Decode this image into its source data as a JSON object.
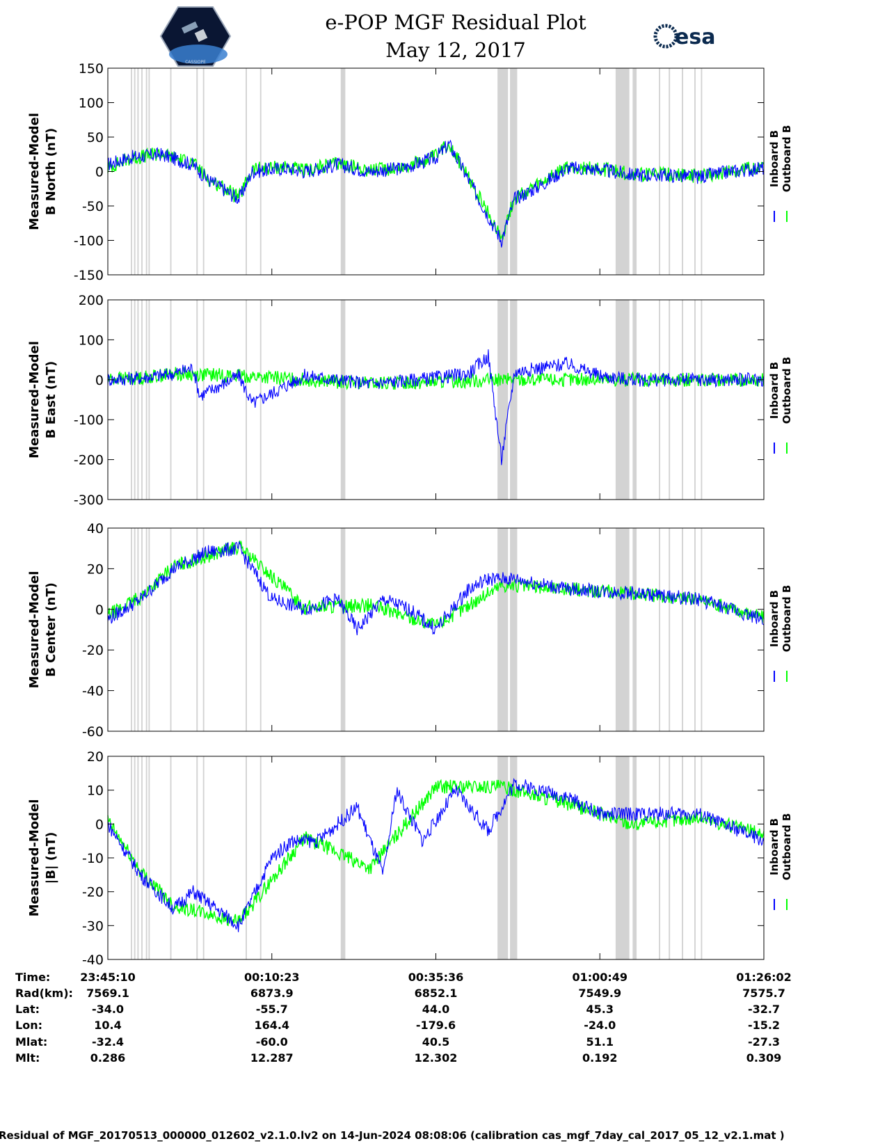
{
  "title_line1": "e-POP MGF Residual Plot",
  "title_line2": "May 12, 2017",
  "logo_left": "CASSIOPE",
  "logo_right": "esa",
  "colors": {
    "inboard": "#0000ff",
    "outboard": "#00ff00",
    "gap": "#d3d3d3"
  },
  "chart_data": [
    {
      "type": "line",
      "ylabel": [
        "Measured-Model",
        "B North (nT)"
      ],
      "ylim": [
        -150,
        150
      ],
      "yticks": [
        -150,
        -100,
        -50,
        0,
        50,
        100,
        150
      ],
      "legend": [
        "Inboard B",
        "Outboard B"
      ],
      "series": [
        {
          "name": "Inboard B",
          "x": [
            0,
            0.03,
            0.08,
            0.13,
            0.15,
            0.2,
            0.22,
            0.27,
            0.3,
            0.35,
            0.4,
            0.45,
            0.5,
            0.52,
            0.56,
            0.6,
            0.62,
            0.66,
            0.7,
            0.75,
            0.8,
            0.85,
            0.9,
            0.95,
            1
          ],
          "y": [
            10,
            20,
            25,
            10,
            -10,
            -40,
            0,
            5,
            0,
            10,
            0,
            5,
            20,
            40,
            -30,
            -100,
            -40,
            -20,
            5,
            3,
            -5,
            -5,
            -8,
            0,
            5
          ]
        },
        {
          "name": "Outboard B",
          "x": [
            0,
            0.03,
            0.08,
            0.13,
            0.15,
            0.2,
            0.22,
            0.27,
            0.3,
            0.35,
            0.4,
            0.45,
            0.5,
            0.52,
            0.56,
            0.6,
            0.62,
            0.66,
            0.7,
            0.75,
            0.8,
            0.85,
            0.9,
            0.95,
            1
          ],
          "y": [
            5,
            18,
            26,
            12,
            -8,
            -38,
            3,
            7,
            1,
            12,
            2,
            6,
            22,
            42,
            -28,
            -95,
            -38,
            -18,
            6,
            4,
            -4,
            -4,
            -7,
            1,
            6
          ]
        }
      ]
    },
    {
      "type": "line",
      "ylabel": [
        "Measured-Model",
        "B East (nT)"
      ],
      "ylim": [
        -300,
        200
      ],
      "yticks": [
        -300,
        -200,
        -100,
        0,
        100,
        200
      ],
      "legend": [
        "Inboard B",
        "Outboard B"
      ],
      "series": [
        {
          "name": "Inboard B",
          "x": [
            0,
            0.05,
            0.1,
            0.13,
            0.14,
            0.2,
            0.22,
            0.3,
            0.4,
            0.5,
            0.55,
            0.58,
            0.6,
            0.62,
            0.7,
            0.75,
            0.8,
            0.9,
            1
          ],
          "y": [
            0,
            5,
            15,
            30,
            -40,
            10,
            -60,
            10,
            -10,
            5,
            15,
            60,
            -200,
            20,
            40,
            10,
            0,
            0,
            0
          ]
        },
        {
          "name": "Outboard B",
          "x": [
            0,
            0.02,
            0.05,
            0.1,
            0.2,
            0.4,
            0.6,
            0.8,
            1
          ],
          "y": [
            2,
            3,
            5,
            15,
            10,
            -10,
            0,
            0,
            0
          ]
        }
      ]
    },
    {
      "type": "line",
      "ylabel": [
        "Measured-Model",
        "B Center (nT)"
      ],
      "ylim": [
        -60,
        40
      ],
      "yticks": [
        -60,
        -40,
        -20,
        0,
        20,
        40
      ],
      "legend": [
        "Inboard B",
        "Outboard B"
      ],
      "series": [
        {
          "name": "Inboard B",
          "x": [
            0,
            0.05,
            0.1,
            0.15,
            0.2,
            0.25,
            0.3,
            0.35,
            0.38,
            0.42,
            0.46,
            0.5,
            0.55,
            0.58,
            0.62,
            0.7,
            0.8,
            0.9,
            0.95,
            1
          ],
          "y": [
            -5,
            5,
            20,
            28,
            30,
            5,
            0,
            5,
            -10,
            5,
            0,
            -10,
            10,
            15,
            15,
            10,
            8,
            5,
            0,
            -5
          ]
        },
        {
          "name": "Outboard B",
          "x": [
            0,
            0.05,
            0.1,
            0.2,
            0.3,
            0.4,
            0.5,
            0.6,
            0.7,
            0.8,
            0.9,
            1
          ],
          "y": [
            -3,
            6,
            21,
            31,
            1,
            2,
            -8,
            12,
            10,
            8,
            5,
            -4
          ]
        }
      ]
    },
    {
      "type": "line",
      "ylabel": [
        "Measured-Model",
        "|B| (nT)"
      ],
      "ylim": [
        -40,
        20
      ],
      "yticks": [
        -40,
        -30,
        -20,
        -10,
        0,
        10,
        20
      ],
      "legend": [
        "Inboard B",
        "Outboard B"
      ],
      "series": [
        {
          "name": "Inboard B",
          "x": [
            0,
            0.05,
            0.1,
            0.13,
            0.2,
            0.25,
            0.28,
            0.32,
            0.38,
            0.42,
            0.44,
            0.48,
            0.53,
            0.58,
            0.62,
            0.7,
            0.75,
            0.8,
            0.9,
            1
          ],
          "y": [
            0,
            -15,
            -25,
            -20,
            -30,
            -10,
            -5,
            -5,
            5,
            -15,
            10,
            -5,
            10,
            -2,
            12,
            8,
            3,
            3,
            3,
            -5
          ]
        },
        {
          "name": "Outboard B",
          "x": [
            0,
            0.05,
            0.1,
            0.2,
            0.3,
            0.4,
            0.5,
            0.6,
            0.7,
            0.8,
            0.9,
            1
          ],
          "y": [
            1,
            -14,
            -24,
            -29,
            -4,
            -13,
            11,
            11,
            6,
            0,
            2,
            -3
          ]
        }
      ]
    }
  ],
  "info_table": {
    "row_labels": [
      "Time:",
      "Rad(km):",
      "Lat:",
      "Lon:",
      "Mlat:",
      "Mlt:"
    ],
    "columns": [
      [
        "23:45:10",
        "7569.1",
        "-34.0",
        "10.4",
        "-32.4",
        "0.286"
      ],
      [
        "00:10:23",
        "6873.9",
        "-55.7",
        "164.4",
        "-60.0",
        "12.287"
      ],
      [
        "00:35:36",
        "6852.1",
        "44.0",
        "-179.6",
        "40.5",
        "12.302"
      ],
      [
        "01:00:49",
        "7549.9",
        "45.3",
        "-24.0",
        "51.1",
        "0.192"
      ],
      [
        "01:26:02",
        "7575.7",
        "-32.7",
        "-15.2",
        "-27.3",
        "0.309"
      ]
    ]
  },
  "footer": "Residual of MGF_20170513_000000_012602_v2.1.0.lv2 on 14-Jun-2024 08:08:06 (calibration cas_mgf_7day_cal_2017_05_12_v2.1.mat )"
}
